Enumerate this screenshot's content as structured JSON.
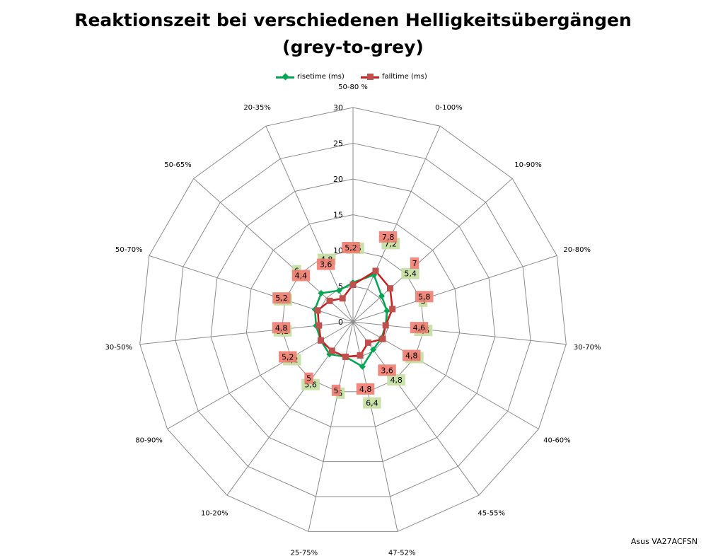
{
  "chart_data": {
    "type": "radar",
    "title": [
      "Reaktionszeit bei verschiedenen Helligkeitsübergängen",
      "(grey-to-grey)"
    ],
    "categories": [
      "50-80 %",
      "0-100%",
      "10-90%",
      "20-80%",
      "30-70%",
      "40-60%",
      "45-55%",
      "47-52%",
      "25-75%",
      "10-20%",
      "80-90%",
      "30-50%",
      "50-70%",
      "50-65%",
      "20-35%"
    ],
    "radial_ticks": [
      "0",
      "5",
      "10",
      "15",
      "20",
      "25",
      "30"
    ],
    "rmax": 30,
    "grid": true,
    "legend_position": "top",
    "series": [
      {
        "name": "risetime (ms)",
        "color": "#00a650",
        "label_bg": "#c4dea1",
        "marker": "diamond",
        "values": [
          5.5,
          7.2,
          5.4,
          5,
          4.6,
          4.6,
          4.8,
          6.4,
          5,
          5.6,
          5.2,
          5.2,
          5.6,
          6,
          4.8
        ],
        "labels": [
          "5,5",
          "7,2",
          "5,4",
          "5",
          "4,6",
          "4,6",
          "4,8",
          "6,4",
          "5",
          "5,6",
          "5,2",
          "5,2",
          "5,6",
          "6",
          "4,8"
        ]
      },
      {
        "name": "falltime (ms)",
        "color": "#cc1e1e",
        "label_bg": "#f07c70",
        "marker": "square",
        "values": [
          5.2,
          7.8,
          7,
          5.8,
          4.6,
          4.8,
          3.6,
          4.8,
          5,
          5,
          5.2,
          4.8,
          5.2,
          4.4,
          3.6
        ],
        "labels": [
          "5,2",
          "7,8",
          "7",
          "5,8",
          "4,6",
          "4,8",
          "3,6",
          "4,8",
          "5",
          "5",
          "5,2",
          "4,8",
          "5,2",
          "4,4",
          "3,6"
        ]
      }
    ]
  },
  "watermark": "Asus VA27ACFSN"
}
